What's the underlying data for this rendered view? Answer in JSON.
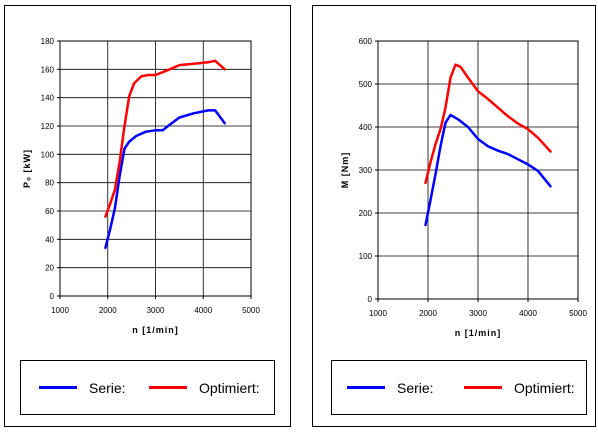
{
  "chart_data": [
    {
      "type": "line",
      "xlabel": "n [1/min]",
      "ylabel": "P₀ [kW]",
      "xlim": [
        1000,
        5000
      ],
      "ylim": [
        0,
        180
      ],
      "xticks": [
        1000,
        2000,
        3000,
        4000,
        5000
      ],
      "yticks": [
        0,
        20,
        40,
        60,
        80,
        100,
        120,
        140,
        160,
        180
      ],
      "grid": true,
      "legend": "bottom",
      "series": [
        {
          "name": "Serie:",
          "color": "#0000ff",
          "x": [
            1950,
            2050,
            2150,
            2250,
            2350,
            2450,
            2600,
            2800,
            3000,
            3150,
            3300,
            3500,
            3800,
            4100,
            4250,
            4450
          ],
          "y": [
            34,
            47,
            62,
            85,
            104,
            109,
            113,
            116,
            117,
            117,
            121,
            126,
            129,
            131,
            131,
            122
          ]
        },
        {
          "name": "Optimiert:",
          "color": "#ff0000",
          "x": [
            1950,
            2050,
            2150,
            2250,
            2350,
            2450,
            2550,
            2700,
            2850,
            3000,
            3150,
            3300,
            3500,
            3800,
            4100,
            4250,
            4450
          ],
          "y": [
            56,
            65,
            75,
            95,
            120,
            141,
            150,
            155,
            156,
            156,
            158,
            160,
            163,
            164,
            165,
            166,
            160
          ]
        }
      ]
    },
    {
      "type": "line",
      "xlabel": "n [1/min]",
      "ylabel": "M [Nm]",
      "xlim": [
        1000,
        5000
      ],
      "ylim": [
        0,
        600
      ],
      "xticks": [
        1000,
        2000,
        3000,
        4000,
        5000
      ],
      "yticks": [
        0,
        100,
        200,
        300,
        400,
        500,
        600
      ],
      "grid": true,
      "legend": "bottom",
      "series": [
        {
          "name": "Serie:",
          "color": "#0000ff",
          "x": [
            1950,
            2050,
            2150,
            2250,
            2350,
            2450,
            2600,
            2800,
            3000,
            3200,
            3400,
            3600,
            3800,
            4000,
            4200,
            4450
          ],
          "y": [
            172,
            230,
            290,
            355,
            410,
            428,
            418,
            400,
            372,
            355,
            345,
            337,
            325,
            313,
            298,
            262
          ]
        },
        {
          "name": "Optimiert:",
          "color": "#ff0000",
          "x": [
            1950,
            2050,
            2150,
            2250,
            2350,
            2450,
            2550,
            2650,
            2800,
            3000,
            3200,
            3400,
            3600,
            3800,
            4000,
            4200,
            4450
          ],
          "y": [
            270,
            318,
            360,
            395,
            445,
            515,
            545,
            540,
            515,
            483,
            465,
            445,
            425,
            408,
            395,
            375,
            343
          ]
        }
      ]
    }
  ]
}
